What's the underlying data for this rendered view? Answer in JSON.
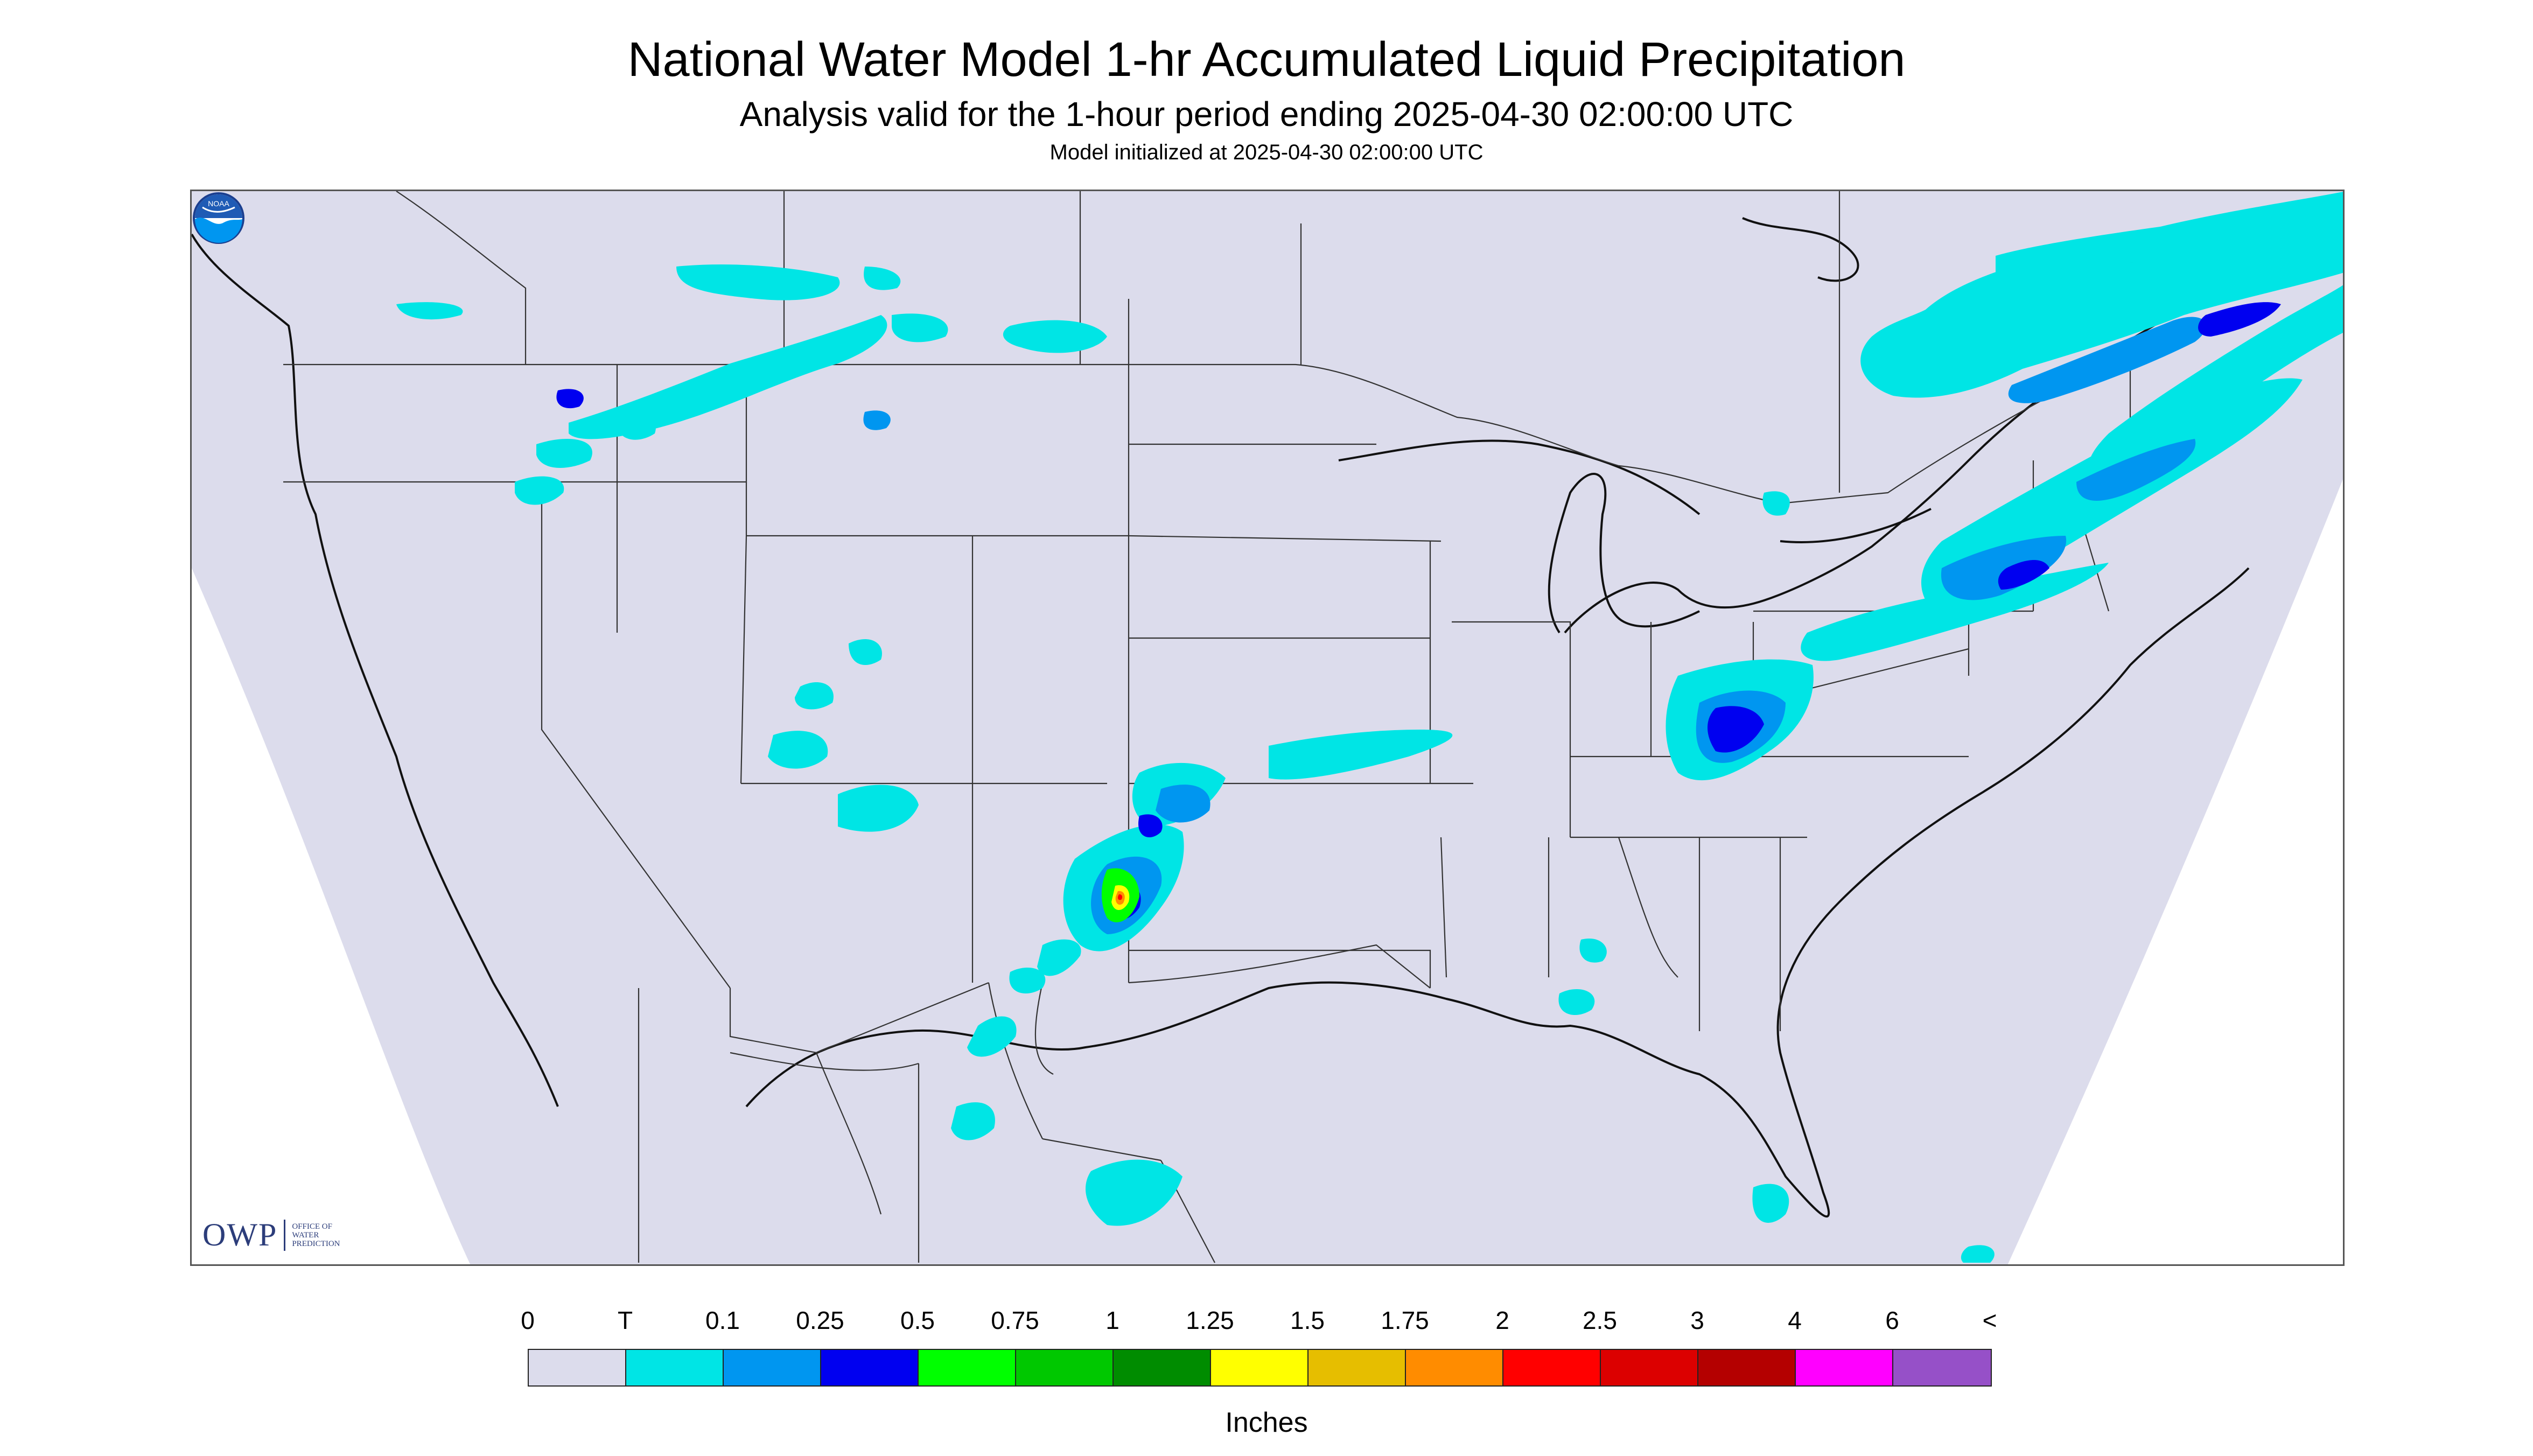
{
  "title": "National Water Model 1-hr Accumulated Liquid Precipitation",
  "subtitle": "Analysis valid for the 1-hour period ending 2025-04-30 02:00:00 UTC",
  "init_line": "Model initialized at 2025-04-30 02:00:00 UTC",
  "map": {
    "background_color": "#dcdcec",
    "border_color": "#555555",
    "owp_logo": {
      "abbr": "OWP",
      "lines": [
        "OFFICE OF",
        "WATER",
        "PREDICTION"
      ]
    },
    "noaa_logo_text": "NOAA"
  },
  "legend": {
    "labels": [
      "0",
      "T",
      "0.1",
      "0.25",
      "0.5",
      "0.75",
      "1",
      "1.25",
      "1.5",
      "1.75",
      "2",
      "2.5",
      "3",
      "4",
      "6",
      "<"
    ],
    "colors": [
      "#dcdcec",
      "#00e5e5",
      "#0096f0",
      "#0000f0",
      "#00ff00",
      "#00c800",
      "#008c00",
      "#ffff00",
      "#e6be00",
      "#ff8c00",
      "#ff0000",
      "#dc0000",
      "#b40000",
      "#ff00ff",
      "#9650c8"
    ],
    "units": "Inches"
  }
}
